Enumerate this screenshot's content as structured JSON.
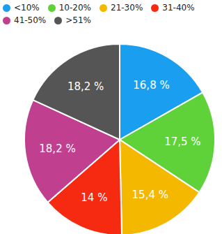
{
  "chart_data": {
    "type": "pie",
    "categories": [
      "<10%",
      "10-20%",
      "21-30%",
      "31-40%",
      "41-50%",
      ">51%"
    ],
    "values": [
      16.8,
      17.5,
      15.4,
      14,
      18.2,
      18.2
    ],
    "value_labels": [
      "16,8 %",
      "17,5 %",
      "15,4 %",
      "14 %",
      "18,2 %",
      "18,2 %"
    ],
    "colors": [
      "#1a9ff0",
      "#5fd23a",
      "#f5b800",
      "#f52a10",
      "#c0408f",
      "#555555"
    ],
    "legend": "top",
    "data_labels": true
  }
}
